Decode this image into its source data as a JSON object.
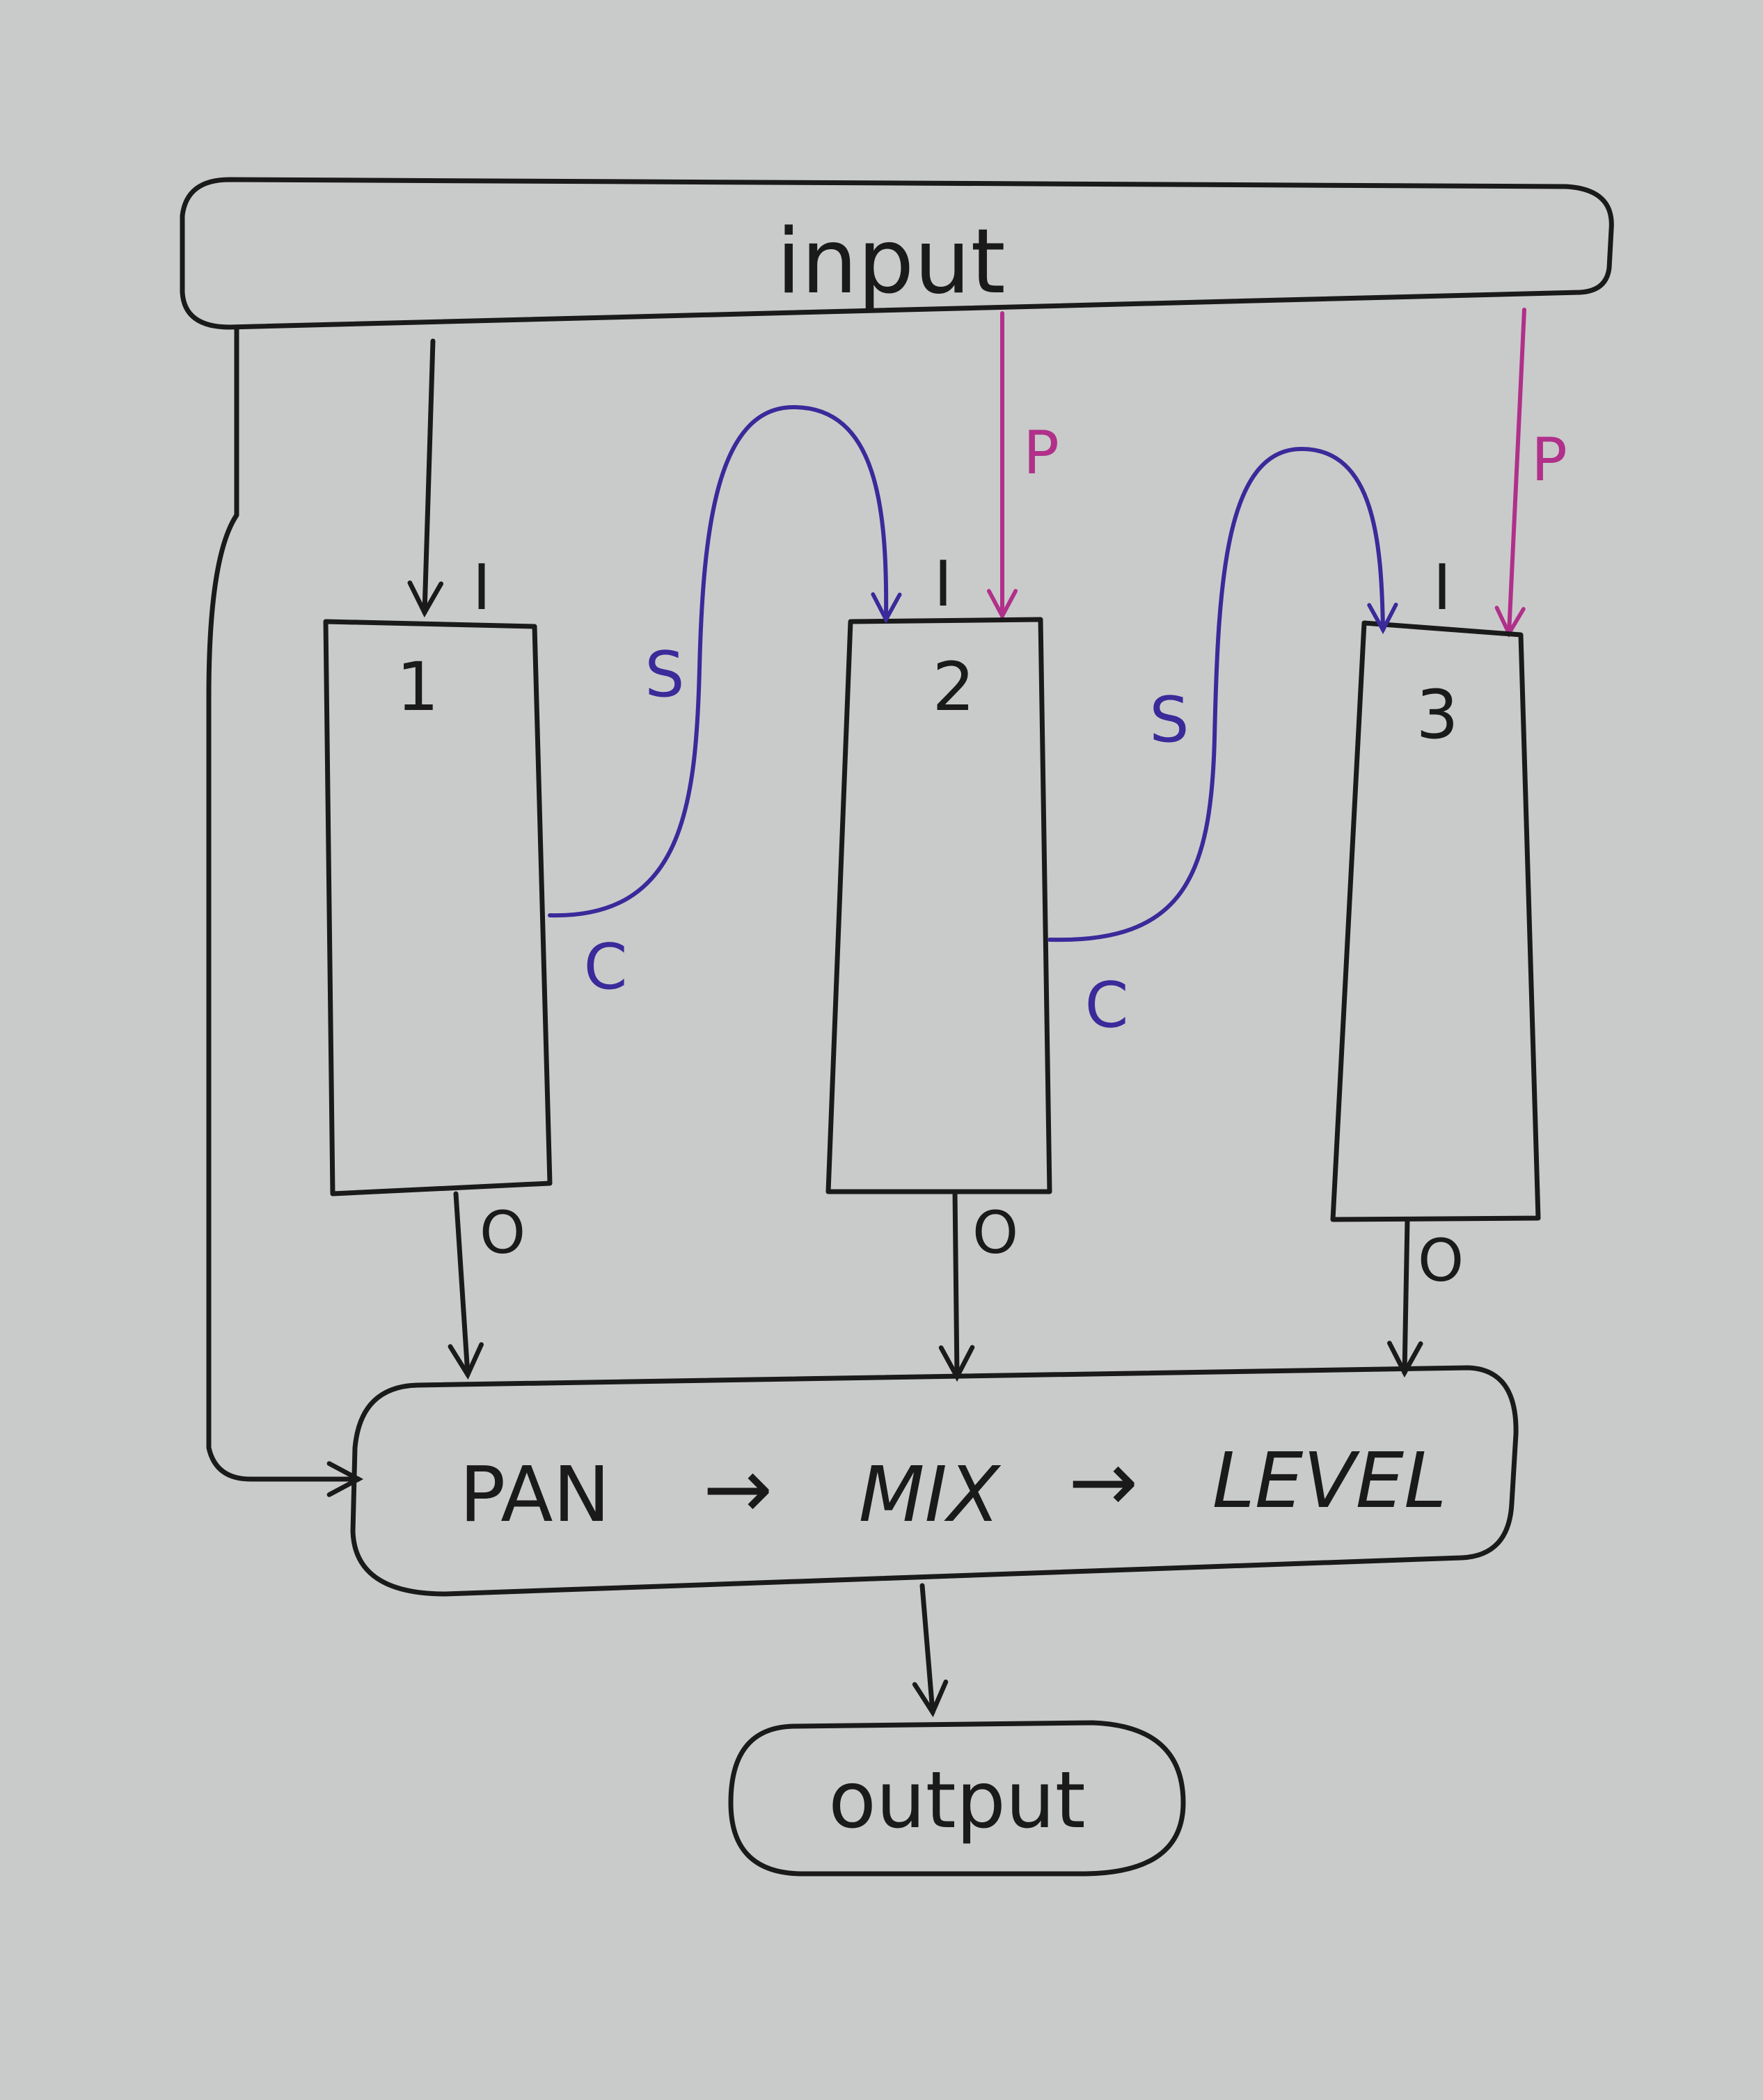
{
  "colors": {
    "paper": "#c9cbca",
    "ink": "#1a1a1a",
    "sidechain": "#3a2a9a",
    "parallel": "#b0308a"
  },
  "labels": {
    "input": "input",
    "output": "output",
    "in_port": "I",
    "out_port": "O",
    "sidechain": "S",
    "control": "C",
    "parallel": "P",
    "pan": "PAN",
    "mix": "MIX",
    "level": "LEVEL",
    "arrow": "→"
  },
  "modules": [
    {
      "id": "module-1",
      "number": "1"
    },
    {
      "id": "module-2",
      "number": "2"
    },
    {
      "id": "module-3",
      "number": "3"
    }
  ]
}
